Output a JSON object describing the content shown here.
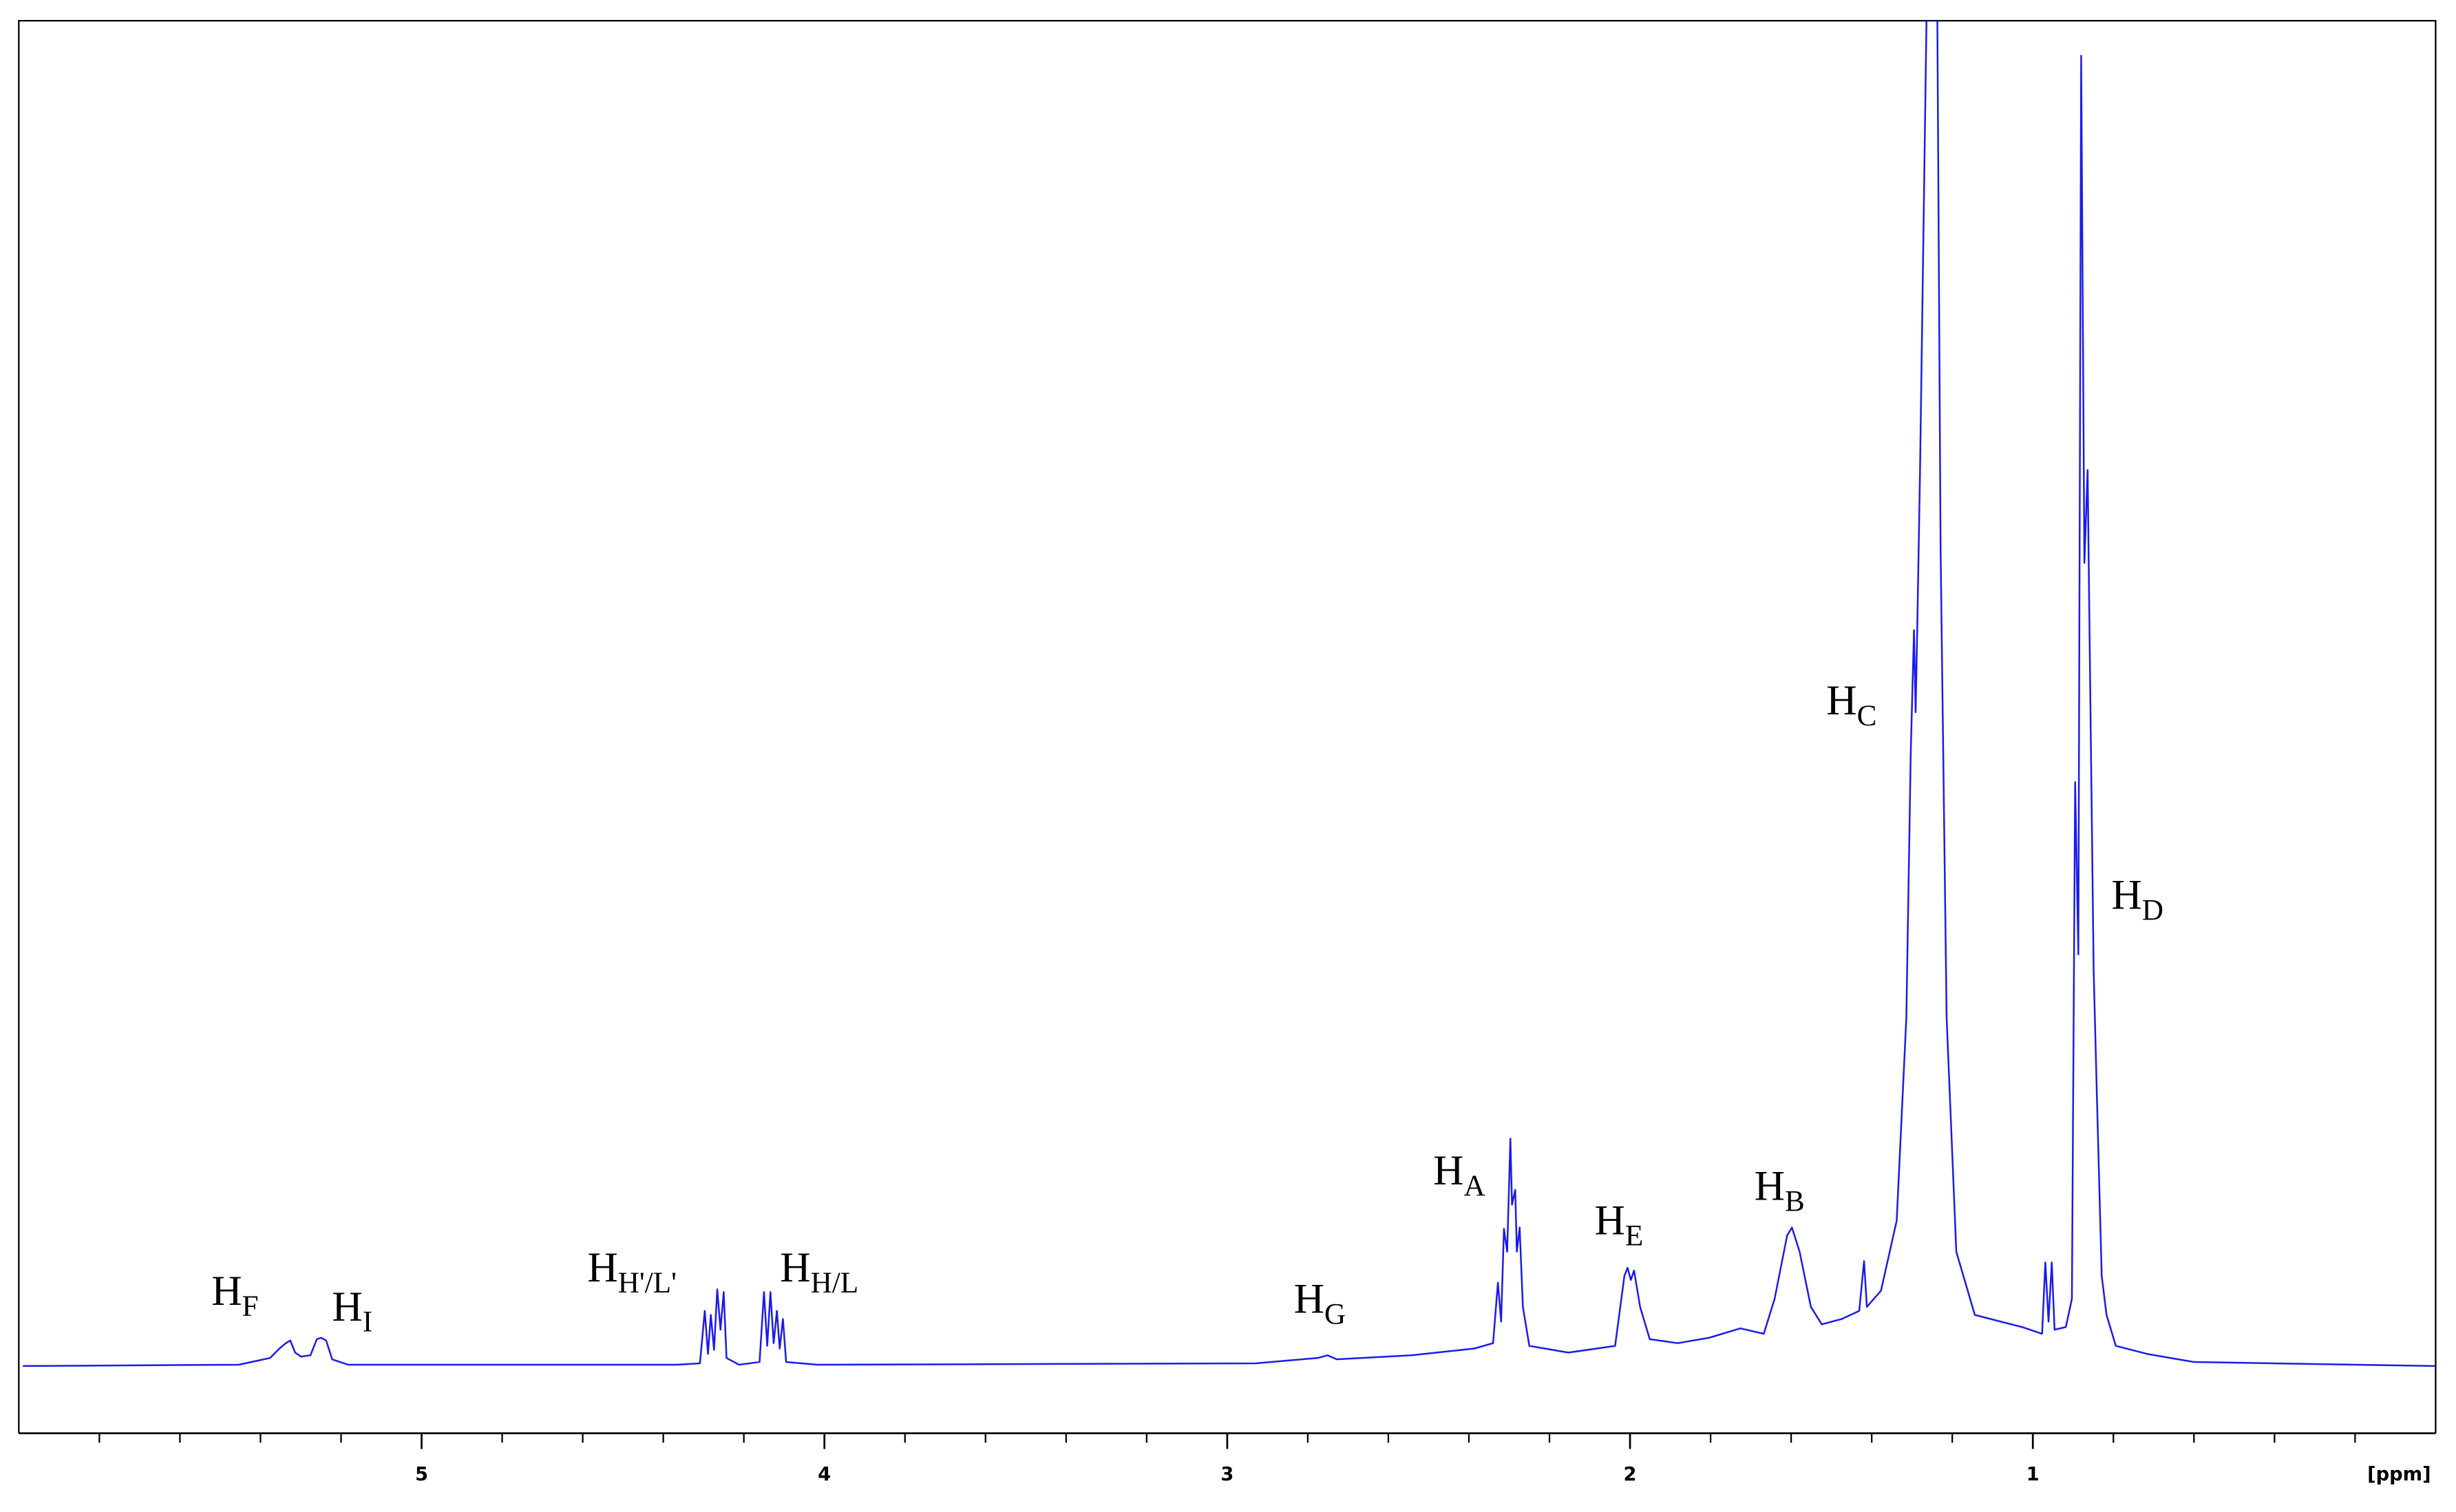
{
  "chart_data": {
    "type": "line",
    "color": "#1c1ce6",
    "x_label": "[ppm]",
    "xlim": [
      6,
      0
    ],
    "ylim": [
      -5,
      100
    ],
    "xticks": [
      5,
      4,
      3,
      2,
      1
    ],
    "xminorticks": [
      5.8,
      5.6,
      5.4,
      5.2,
      4.8,
      4.6,
      4.4,
      4.2,
      3.8,
      3.6,
      3.4,
      3.2,
      2.8,
      2.6,
      2.4,
      2.2,
      1.8,
      1.6,
      1.4,
      1.2,
      0.8,
      0.6,
      0.4,
      0.2
    ],
    "x": [
      5.99,
      5.454,
      5.376,
      5.353,
      5.337,
      5.326,
      5.314,
      5.299,
      5.276,
      5.26,
      5.249,
      5.237,
      5.222,
      5.183,
      4.367,
      4.309,
      4.297,
      4.289,
      4.282,
      4.274,
      4.266,
      4.258,
      4.25,
      4.243,
      4.212,
      4.161,
      4.15,
      4.142,
      4.134,
      4.126,
      4.118,
      4.111,
      4.103,
      4.095,
      4.017,
      2.93,
      2.775,
      2.751,
      2.728,
      2.542,
      2.387,
      2.34,
      2.328,
      2.32,
      2.313,
      2.305,
      2.297,
      2.293,
      2.285,
      2.281,
      2.274,
      2.266,
      2.25,
      2.153,
      2.037,
      2.014,
      2.006,
      1.998,
      1.99,
      1.975,
      1.951,
      1.882,
      1.804,
      1.726,
      1.668,
      1.641,
      1.61,
      1.598,
      1.579,
      1.551,
      1.524,
      1.474,
      1.431,
      1.419,
      1.412,
      1.377,
      1.338,
      1.314,
      1.303,
      1.295,
      1.291,
      1.287,
      1.28,
      1.264,
      1.237,
      1.229,
      1.214,
      1.19,
      1.144,
      1.027,
      0.977,
      0.969,
      0.961,
      0.953,
      0.946,
      0.918,
      0.903,
      0.895,
      0.887,
      0.88,
      0.872,
      0.864,
      0.856,
      0.849,
      0.841,
      0.829,
      0.817,
      0.794,
      0.716,
      0.6,
      0.002
    ],
    "values": [
      0,
      0.1,
      0.6,
      1.3,
      1.7,
      1.9,
      1.0,
      0.7,
      0.8,
      2.0,
      2.1,
      1.9,
      0.5,
      0.1,
      0.1,
      0.2,
      4.1,
      0.9,
      3.8,
      1.2,
      5.7,
      2.7,
      5.5,
      0.6,
      0.1,
      0.3,
      5.5,
      1.5,
      5.5,
      1.7,
      4.1,
      1.3,
      3.5,
      0.3,
      0.1,
      0.2,
      0.6,
      0.8,
      0.5,
      0.8,
      1.3,
      1.7,
      6.2,
      3.3,
      10.2,
      8.5,
      16.9,
      12.0,
      13.1,
      8.5,
      10.3,
      4.4,
      1.5,
      1.0,
      1.5,
      6.7,
      7.3,
      6.4,
      7.1,
      4.4,
      2.0,
      1.7,
      2.1,
      2.8,
      2.4,
      5.0,
      9.7,
      10.3,
      8.5,
      4.4,
      3.1,
      3.5,
      4.1,
      7.8,
      4.4,
      5.6,
      10.8,
      25.9,
      45.7,
      54.7,
      48.6,
      54.7,
      66.6,
      100,
      100,
      60.8,
      25.9,
      8.5,
      3.8,
      2.9,
      2.4,
      7.7,
      3.3,
      7.7,
      2.7,
      2.9,
      5.0,
      43.4,
      30.6,
      97.4,
      59.7,
      66.6,
      46.5,
      29.4,
      20.1,
      6.7,
      3.8,
      1.5,
      0.9,
      0.3,
      0
    ],
    "annotations": [
      {
        "text": "H",
        "sub": "F"
      },
      {
        "text": "H",
        "sub": "I"
      },
      {
        "text": "H",
        "sub": "H'/L'"
      },
      {
        "text": "H",
        "sub": "H/L"
      },
      {
        "text": "H",
        "sub": "G"
      },
      {
        "text": "H",
        "sub": "A"
      },
      {
        "text": "H",
        "sub": "E"
      },
      {
        "text": "H",
        "sub": "B"
      },
      {
        "text": "H",
        "sub": "C"
      },
      {
        "text": "H",
        "sub": "D"
      }
    ]
  }
}
